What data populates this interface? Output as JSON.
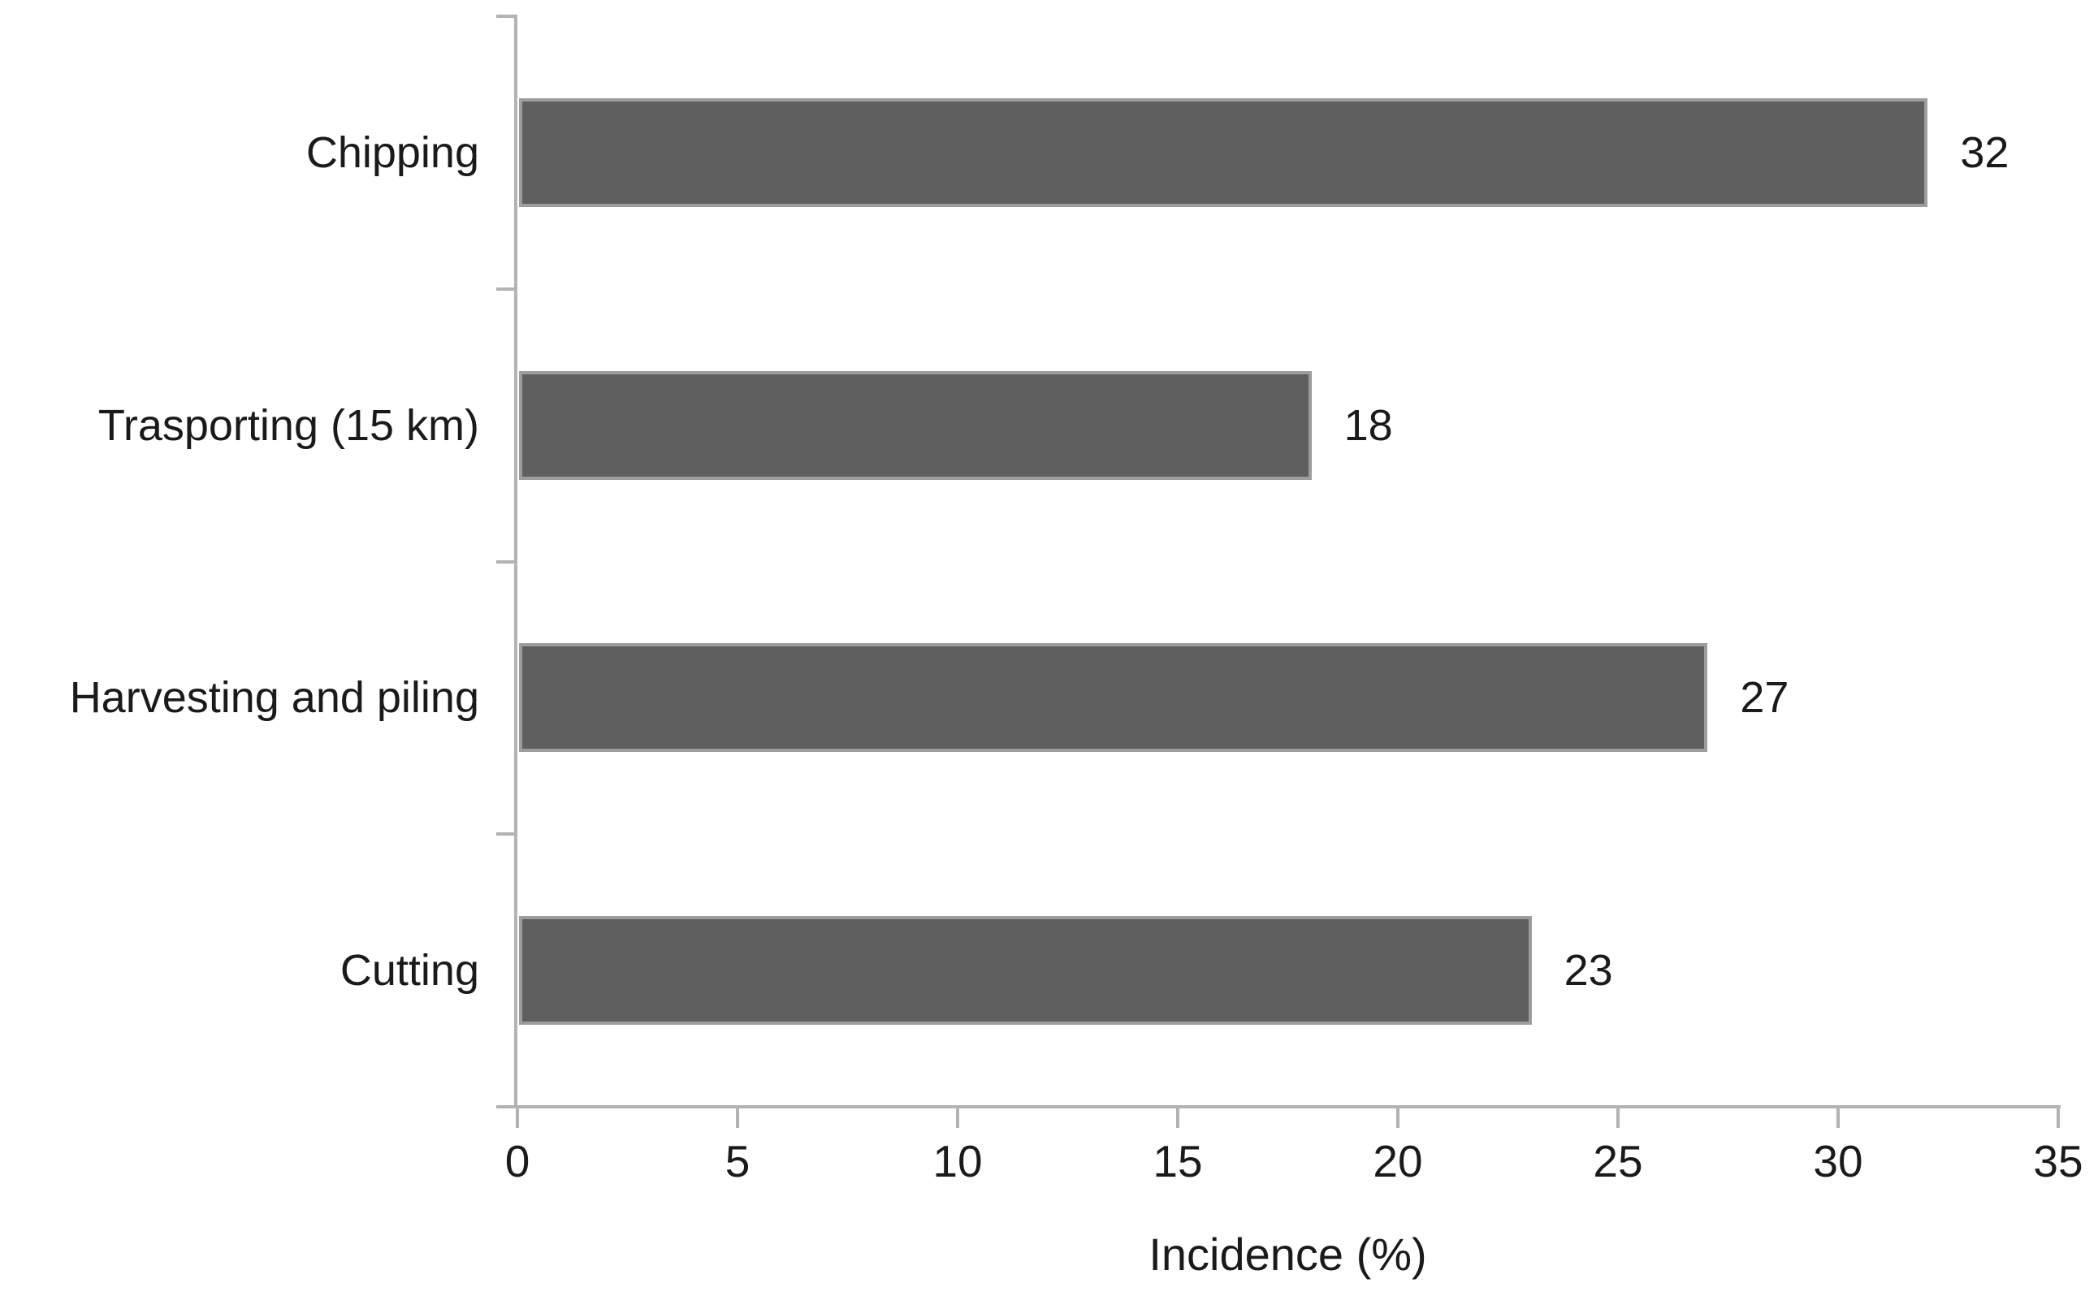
{
  "chart_data": {
    "type": "bar",
    "orientation": "horizontal",
    "categories": [
      "Chipping",
      "Trasporting (15 km)",
      "Harvesting and piling",
      "Cutting"
    ],
    "values": [
      32,
      18,
      27,
      23
    ],
    "data_labels": [
      "32",
      "18",
      "27",
      "23"
    ],
    "title": "",
    "xlabel": "Incidence (%)",
    "ylabel": "",
    "xlim": [
      0,
      35
    ],
    "xticks": [
      0,
      5,
      10,
      15,
      20,
      25,
      30,
      35
    ],
    "grid": false,
    "legend": false,
    "bar_color": "#5f5f5f",
    "bar_border_color": "#9d9d9d",
    "axis_color": "#b3b3b3",
    "text_color": "#1a1a1a",
    "background_color": "#ffffff"
  }
}
